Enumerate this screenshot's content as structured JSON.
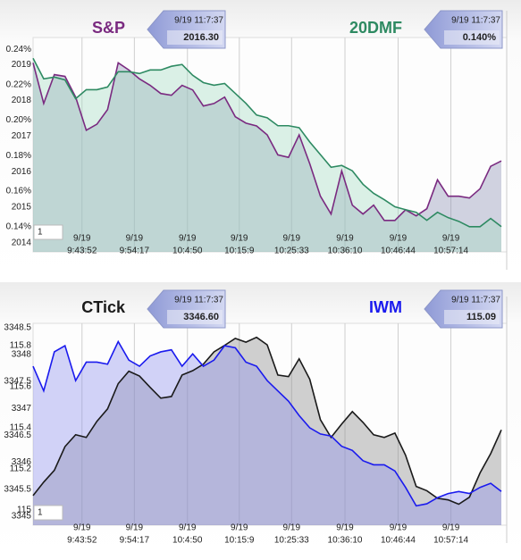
{
  "chart_data": [
    {
      "type": "line",
      "grid": true,
      "x": [
        34448,
        34575,
        34702,
        34829,
        34956,
        35083,
        35210,
        35337,
        35464,
        35591,
        35718,
        35845,
        35972,
        36099,
        36226,
        36353,
        36480,
        36607,
        36734,
        36861,
        36988,
        37115,
        37242,
        37369,
        37496,
        37623,
        37750,
        37877,
        38004,
        38131,
        38258,
        38385,
        38512,
        38639,
        38766,
        38893,
        39020,
        39147,
        39274,
        39401,
        39528,
        39655,
        39782,
        39909,
        40036
      ],
      "xlim": [
        34448,
        40100
      ],
      "xticks": [
        {
          "value": 35032,
          "label": [
            "9/19",
            "9:43:52"
          ]
        },
        {
          "value": 35657,
          "label": [
            "9/19",
            "9:54:17"
          ]
        },
        {
          "value": 36290,
          "label": [
            "9/19",
            "10:4:50"
          ]
        },
        {
          "value": 36909,
          "label": [
            "9/19",
            "10:15:9"
          ]
        },
        {
          "value": 37533,
          "label": [
            "9/19",
            "10:25:33"
          ]
        },
        {
          "value": 38170,
          "label": [
            "9/19",
            "10:36:10"
          ]
        },
        {
          "value": 38804,
          "label": [
            "9/19",
            "10:46:44"
          ]
        },
        {
          "value": 39434,
          "label": [
            "9/19",
            "10:57:14"
          ]
        }
      ],
      "ylim": [
        2013.75,
        2019.76
      ],
      "yticks": [
        2014,
        2015,
        2016,
        2017,
        2018,
        2019
      ],
      "y2lim": [
        0.1258,
        0.2466
      ],
      "y2ticks": [
        {
          "value": 0.14,
          "label": "0.14%"
        },
        {
          "value": 0.16,
          "label": "0.16%"
        },
        {
          "value": 0.18,
          "label": "0.18%"
        },
        {
          "value": 0.2,
          "label": "0.20%"
        },
        {
          "value": 0.22,
          "label": "0.22%"
        },
        {
          "value": 0.24,
          "label": "0.24%"
        }
      ],
      "zoom": "1",
      "series": [
        {
          "name": "S&P",
          "color": "#7a2a80",
          "fill": "#8c90b4",
          "axis": "y",
          "timestamp": "9/19 11:7:37",
          "last_label": "2016.30",
          "values": [
            2019.05,
            2017.91,
            2018.72,
            2018.67,
            2018.09,
            2017.16,
            2017.33,
            2017.74,
            2019.05,
            2018.85,
            2018.6,
            2018.42,
            2018.19,
            2018.14,
            2018.42,
            2018.29,
            2017.84,
            2017.91,
            2018.09,
            2017.54,
            2017.36,
            2017.28,
            2017.03,
            2016.47,
            2016.4,
            2017.03,
            2016.22,
            2015.31,
            2014.81,
            2016.02,
            2015.06,
            2014.81,
            2015.06,
            2014.63,
            2014.63,
            2014.93,
            2014.76,
            2014.96,
            2015.77,
            2015.31,
            2015.31,
            2015.26,
            2015.52,
            2016.15,
            2016.3
          ]
        },
        {
          "name": "20DMF",
          "color": "#2e8a62",
          "fill": "#a6dcc4",
          "axis": "y2",
          "timestamp": "9/19 11:7:37",
          "last_label": "0.140%",
          "values": [
            0.2349,
            0.2233,
            0.2243,
            0.2227,
            0.2121,
            0.2172,
            0.2172,
            0.2187,
            0.2273,
            0.2273,
            0.2263,
            0.2283,
            0.2283,
            0.2304,
            0.2314,
            0.2253,
            0.2212,
            0.2197,
            0.2207,
            0.2151,
            0.2095,
            0.2029,
            0.2014,
            0.1969,
            0.1969,
            0.1958,
            0.1877,
            0.1806,
            0.1735,
            0.1745,
            0.1715,
            0.1639,
            0.1588,
            0.1552,
            0.1512,
            0.1496,
            0.1481,
            0.1436,
            0.1481,
            0.1451,
            0.143,
            0.14,
            0.14,
            0.1446,
            0.14
          ]
        }
      ]
    },
    {
      "type": "line",
      "grid": true,
      "x": [
        34448,
        34575,
        34702,
        34829,
        34956,
        35083,
        35210,
        35337,
        35464,
        35591,
        35718,
        35845,
        35972,
        36099,
        36226,
        36353,
        36480,
        36607,
        36734,
        36861,
        36988,
        37115,
        37242,
        37369,
        37496,
        37623,
        37750,
        37877,
        38004,
        38131,
        38258,
        38385,
        38512,
        38639,
        38766,
        38893,
        39020,
        39147,
        39274,
        39401,
        39528,
        39655,
        39782,
        39909,
        40036
      ],
      "xlim": [
        34448,
        40100
      ],
      "xticks": [
        {
          "value": 35032,
          "label": [
            "9/19",
            "9:43:52"
          ]
        },
        {
          "value": 35657,
          "label": [
            "9/19",
            "9:54:17"
          ]
        },
        {
          "value": 36290,
          "label": [
            "9/19",
            "10:4:50"
          ]
        },
        {
          "value": 36909,
          "label": [
            "9/19",
            "10:15:9"
          ]
        },
        {
          "value": 37533,
          "label": [
            "9/19",
            "10:25:33"
          ]
        },
        {
          "value": 38170,
          "label": [
            "9/19",
            "10:36:10"
          ]
        },
        {
          "value": 38804,
          "label": [
            "9/19",
            "10:46:44"
          ]
        },
        {
          "value": 39434,
          "label": [
            "9/19",
            "10:57:14"
          ]
        }
      ],
      "ylim": [
        3344.83,
        3348.58
      ],
      "yticks": [
        3345,
        3345.5,
        3346,
        3346.5,
        3347,
        3347.5,
        3348,
        3348.5
      ],
      "y2lim": [
        114.926,
        115.909
      ],
      "y2ticks": [
        115,
        115.2,
        115.4,
        115.6,
        115.8
      ],
      "zoom": "1",
      "series": [
        {
          "name": "CTick",
          "color": "#1a1a1a",
          "fill": "#8a8a8a",
          "axis": "y",
          "timestamp": "9/19 11:7:37",
          "last_label": "3346.60",
          "values": [
            3345.38,
            3345.63,
            3345.85,
            3346.29,
            3346.51,
            3346.46,
            3346.76,
            3346.99,
            3347.46,
            3347.69,
            3347.6,
            3347.39,
            3347.19,
            3347.22,
            3347.62,
            3347.7,
            3347.82,
            3348.05,
            3348.17,
            3348.3,
            3348.23,
            3348.32,
            3348.18,
            3347.62,
            3347.59,
            3347.92,
            3347.54,
            3346.79,
            3346.46,
            3346.71,
            3346.94,
            3346.74,
            3346.51,
            3346.46,
            3346.54,
            3346.13,
            3345.55,
            3345.47,
            3345.33,
            3345.3,
            3345.22,
            3345.35,
            3345.8,
            3346.16,
            3346.6
          ]
        },
        {
          "name": "IWM",
          "color": "#1a1aee",
          "fill": "#8e92ee",
          "axis": "y2",
          "timestamp": "9/19 11:7:37",
          "last_label": "115.09",
          "values": [
            115.7,
            115.58,
            115.77,
            115.8,
            115.63,
            115.72,
            115.72,
            115.71,
            115.82,
            115.73,
            115.7,
            115.75,
            115.77,
            115.78,
            115.7,
            115.76,
            115.7,
            115.73,
            115.8,
            115.79,
            115.72,
            115.7,
            115.63,
            115.58,
            115.53,
            115.46,
            115.4,
            115.37,
            115.36,
            115.31,
            115.29,
            115.24,
            115.22,
            115.22,
            115.19,
            115.11,
            115.02,
            115.03,
            115.06,
            115.08,
            115.09,
            115.08,
            115.11,
            115.13,
            115.09
          ]
        }
      ]
    }
  ]
}
